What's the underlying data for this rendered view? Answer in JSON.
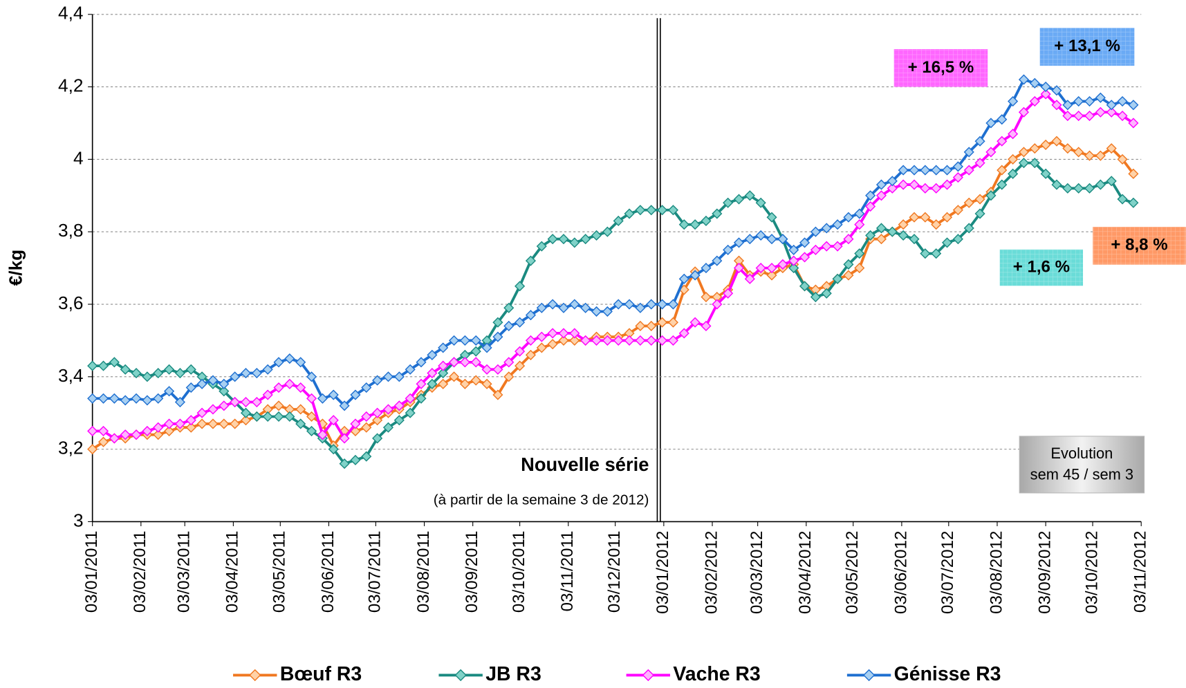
{
  "chart_data": {
    "type": "line",
    "ylabel": "€/kg",
    "x": [
      "2011-01-03",
      "2011-01-10",
      "2011-01-17",
      "2011-01-24",
      "2011-01-31",
      "2011-02-07",
      "2011-02-14",
      "2011-02-21",
      "2011-02-28",
      "2011-03-07",
      "2011-03-14",
      "2011-03-21",
      "2011-03-28",
      "2011-04-04",
      "2011-04-11",
      "2011-04-18",
      "2011-04-25",
      "2011-05-02",
      "2011-05-09",
      "2011-05-16",
      "2011-05-23",
      "2011-05-30",
      "2011-06-06",
      "2011-06-13",
      "2011-06-20",
      "2011-06-27",
      "2011-07-04",
      "2011-07-11",
      "2011-07-18",
      "2011-07-25",
      "2011-08-01",
      "2011-08-08",
      "2011-08-15",
      "2011-08-22",
      "2011-08-29",
      "2011-09-05",
      "2011-09-12",
      "2011-09-19",
      "2011-09-26",
      "2011-10-03",
      "2011-10-10",
      "2011-10-17",
      "2011-10-24",
      "2011-10-31",
      "2011-11-07",
      "2011-11-14",
      "2011-11-21",
      "2011-11-28",
      "2011-12-05",
      "2011-12-12",
      "2011-12-19",
      "2011-12-26",
      "2012-01-02",
      "2012-01-09",
      "2012-01-16",
      "2012-01-23",
      "2012-01-30",
      "2012-02-06",
      "2012-02-13",
      "2012-02-20",
      "2012-02-27",
      "2012-03-05",
      "2012-03-12",
      "2012-03-19",
      "2012-03-26",
      "2012-04-02",
      "2012-04-09",
      "2012-04-16",
      "2012-04-23",
      "2012-04-30",
      "2012-05-07",
      "2012-05-14",
      "2012-05-21",
      "2012-05-28",
      "2012-06-04",
      "2012-06-11",
      "2012-06-18",
      "2012-06-25",
      "2012-07-02",
      "2012-07-09",
      "2012-07-16",
      "2012-07-23",
      "2012-07-30",
      "2012-08-06",
      "2012-08-13",
      "2012-08-20",
      "2012-08-27",
      "2012-09-03",
      "2012-09-10",
      "2012-09-17",
      "2012-09-24",
      "2012-10-01",
      "2012-10-08",
      "2012-10-15",
      "2012-10-22",
      "2012-10-29"
    ],
    "series": [
      {
        "name": "Bœuf R3",
        "color": "#f07820",
        "marker_fill": "#ffd2a8",
        "values": [
          3.2,
          3.22,
          3.23,
          3.23,
          3.24,
          3.24,
          3.24,
          3.25,
          3.26,
          3.26,
          3.27,
          3.27,
          3.27,
          3.27,
          3.28,
          3.29,
          3.31,
          3.32,
          3.31,
          3.31,
          3.29,
          3.27,
          3.21,
          3.25,
          3.25,
          3.26,
          3.28,
          3.3,
          3.31,
          3.33,
          3.35,
          3.37,
          3.38,
          3.4,
          3.38,
          3.39,
          3.38,
          3.35,
          3.4,
          3.43,
          3.46,
          3.48,
          3.49,
          3.5,
          3.5,
          3.5,
          3.51,
          3.51,
          3.51,
          3.52,
          3.54,
          3.54,
          3.55,
          3.55,
          3.64,
          3.69,
          3.62,
          3.62,
          3.64,
          3.72,
          3.68,
          3.69,
          3.68,
          3.7,
          3.71,
          3.65,
          3.64,
          3.65,
          3.67,
          3.68,
          3.7,
          3.78,
          3.78,
          3.8,
          3.82,
          3.84,
          3.84,
          3.82,
          3.84,
          3.86,
          3.88,
          3.89,
          3.91,
          3.97,
          4.0,
          4.02,
          4.03,
          4.04,
          4.05,
          4.03,
          4.02,
          4.01,
          4.01,
          4.03,
          4.0,
          3.96
        ]
      },
      {
        "name": "JB R3",
        "color": "#1a8a80",
        "marker_fill": "#80d2c8",
        "values": [
          3.43,
          3.43,
          3.44,
          3.42,
          3.41,
          3.4,
          3.41,
          3.42,
          3.41,
          3.42,
          3.4,
          3.38,
          3.36,
          3.33,
          3.3,
          3.29,
          3.29,
          3.29,
          3.29,
          3.27,
          3.25,
          3.23,
          3.2,
          3.16,
          3.17,
          3.18,
          3.23,
          3.26,
          3.28,
          3.3,
          3.34,
          3.38,
          3.41,
          3.44,
          3.46,
          3.47,
          3.5,
          3.55,
          3.59,
          3.65,
          3.72,
          3.76,
          3.78,
          3.78,
          3.77,
          3.78,
          3.79,
          3.8,
          3.83,
          3.85,
          3.86,
          3.86,
          3.86,
          3.86,
          3.82,
          3.82,
          3.83,
          3.85,
          3.88,
          3.89,
          3.9,
          3.88,
          3.84,
          3.78,
          3.7,
          3.65,
          3.62,
          3.63,
          3.67,
          3.71,
          3.74,
          3.79,
          3.81,
          3.8,
          3.79,
          3.78,
          3.74,
          3.74,
          3.77,
          3.78,
          3.81,
          3.85,
          3.9,
          3.93,
          3.96,
          3.99,
          3.99,
          3.96,
          3.93,
          3.92,
          3.92,
          3.92,
          3.93,
          3.94,
          3.89,
          3.88
        ]
      },
      {
        "name": "Vache R3",
        "color": "#ff00ff",
        "marker_fill": "#ffb4ff",
        "values": [
          3.25,
          3.25,
          3.23,
          3.24,
          3.24,
          3.25,
          3.26,
          3.27,
          3.27,
          3.28,
          3.3,
          3.31,
          3.32,
          3.33,
          3.33,
          3.33,
          3.35,
          3.37,
          3.38,
          3.37,
          3.34,
          3.24,
          3.28,
          3.23,
          3.27,
          3.29,
          3.3,
          3.31,
          3.32,
          3.34,
          3.38,
          3.41,
          3.43,
          3.44,
          3.44,
          3.44,
          3.42,
          3.42,
          3.44,
          3.47,
          3.5,
          3.51,
          3.52,
          3.52,
          3.52,
          3.5,
          3.5,
          3.5,
          3.5,
          3.5,
          3.5,
          3.5,
          3.5,
          3.5,
          3.52,
          3.55,
          3.54,
          3.6,
          3.63,
          3.7,
          3.67,
          3.7,
          3.7,
          3.71,
          3.72,
          3.73,
          3.75,
          3.76,
          3.76,
          3.78,
          3.82,
          3.87,
          3.9,
          3.92,
          3.93,
          3.93,
          3.92,
          3.92,
          3.93,
          3.95,
          3.97,
          3.99,
          4.02,
          4.05,
          4.07,
          4.13,
          4.16,
          4.18,
          4.15,
          4.12,
          4.12,
          4.12,
          4.13,
          4.13,
          4.12,
          4.1
        ]
      },
      {
        "name": "Génisse R3",
        "color": "#1e6fd0",
        "marker_fill": "#a8d0f2",
        "values": [
          3.34,
          3.34,
          3.34,
          3.335,
          3.34,
          3.335,
          3.34,
          3.36,
          3.33,
          3.37,
          3.38,
          3.39,
          3.38,
          3.4,
          3.41,
          3.41,
          3.42,
          3.44,
          3.45,
          3.44,
          3.4,
          3.34,
          3.35,
          3.32,
          3.35,
          3.37,
          3.39,
          3.4,
          3.4,
          3.42,
          3.44,
          3.46,
          3.48,
          3.5,
          3.5,
          3.5,
          3.48,
          3.51,
          3.54,
          3.55,
          3.57,
          3.59,
          3.6,
          3.59,
          3.6,
          3.59,
          3.58,
          3.58,
          3.6,
          3.6,
          3.59,
          3.6,
          3.6,
          3.6,
          3.67,
          3.68,
          3.7,
          3.72,
          3.75,
          3.77,
          3.78,
          3.79,
          3.78,
          3.78,
          3.75,
          3.77,
          3.8,
          3.81,
          3.82,
          3.84,
          3.85,
          3.9,
          3.93,
          3.94,
          3.97,
          3.97,
          3.97,
          3.97,
          3.97,
          3.98,
          4.02,
          4.05,
          4.1,
          4.11,
          4.16,
          4.22,
          4.21,
          4.2,
          4.19,
          4.15,
          4.16,
          4.16,
          4.17,
          4.15,
          4.16,
          4.15
        ]
      }
    ],
    "xlim": [
      "2011-01-03",
      "2012-11-03"
    ],
    "xticks": [
      {
        "value": "2011-01-03",
        "label": "03/01/2011"
      },
      {
        "value": "2011-02-03",
        "label": "03/02/2011"
      },
      {
        "value": "2011-03-03",
        "label": "03/03/2011"
      },
      {
        "value": "2011-04-03",
        "label": "03/04/2011"
      },
      {
        "value": "2011-05-03",
        "label": "03/05/2011"
      },
      {
        "value": "2011-06-03",
        "label": "03/06/2011"
      },
      {
        "value": "2011-07-03",
        "label": "03/07/2011"
      },
      {
        "value": "2011-08-03",
        "label": "03/08/2011"
      },
      {
        "value": "2011-09-03",
        "label": "03/09/2011"
      },
      {
        "value": "2011-10-03",
        "label": "03/10/2011"
      },
      {
        "value": "2011-11-03",
        "label": "03/11/2011"
      },
      {
        "value": "2011-12-03",
        "label": "03/12/2011"
      },
      {
        "value": "2012-01-03",
        "label": "03/01/2012"
      },
      {
        "value": "2012-02-03",
        "label": "03/02/2012"
      },
      {
        "value": "2012-03-03",
        "label": "03/03/2012"
      },
      {
        "value": "2012-04-03",
        "label": "03/04/2012"
      },
      {
        "value": "2012-05-03",
        "label": "03/05/2012"
      },
      {
        "value": "2012-06-03",
        "label": "03/06/2012"
      },
      {
        "value": "2012-07-03",
        "label": "03/07/2012"
      },
      {
        "value": "2012-08-03",
        "label": "03/08/2012"
      },
      {
        "value": "2012-09-03",
        "label": "03/09/2012"
      },
      {
        "value": "2012-10-03",
        "label": "03/10/2012"
      },
      {
        "value": "2012-11-03",
        "label": "03/11/2012"
      }
    ],
    "ylim": [
      3,
      4.4
    ],
    "yticks": [
      3,
      {
        "value": 3.2,
        "label": "3,2"
      },
      {
        "value": 3.4,
        "label": "3,4"
      },
      {
        "value": 3.6,
        "label": "3,6"
      },
      {
        "value": 3.8,
        "label": "3,8"
      },
      4,
      {
        "value": 4.2,
        "label": "4,2"
      },
      {
        "value": 4.4,
        "label": "4,4"
      }
    ],
    "grid": true,
    "legend": "bottom",
    "annotations": [
      {
        "text": "Nouvelle série"
      },
      {
        "text": "(à partir de la semaine 3 de 2012)"
      },
      {
        "text": "+ 16,5 %",
        "color": "#ff66ff"
      },
      {
        "text": "+ 13,1 %",
        "color": "#6aaaf5"
      },
      {
        "text": "+ 8,8 %",
        "color": "#ff9966"
      },
      {
        "text": "+ 1,6 %",
        "color": "#6adcd8"
      },
      {
        "lines": [
          "Evolution",
          "sem 45 / sem 3"
        ],
        "color": "#b8b8b8"
      }
    ]
  }
}
